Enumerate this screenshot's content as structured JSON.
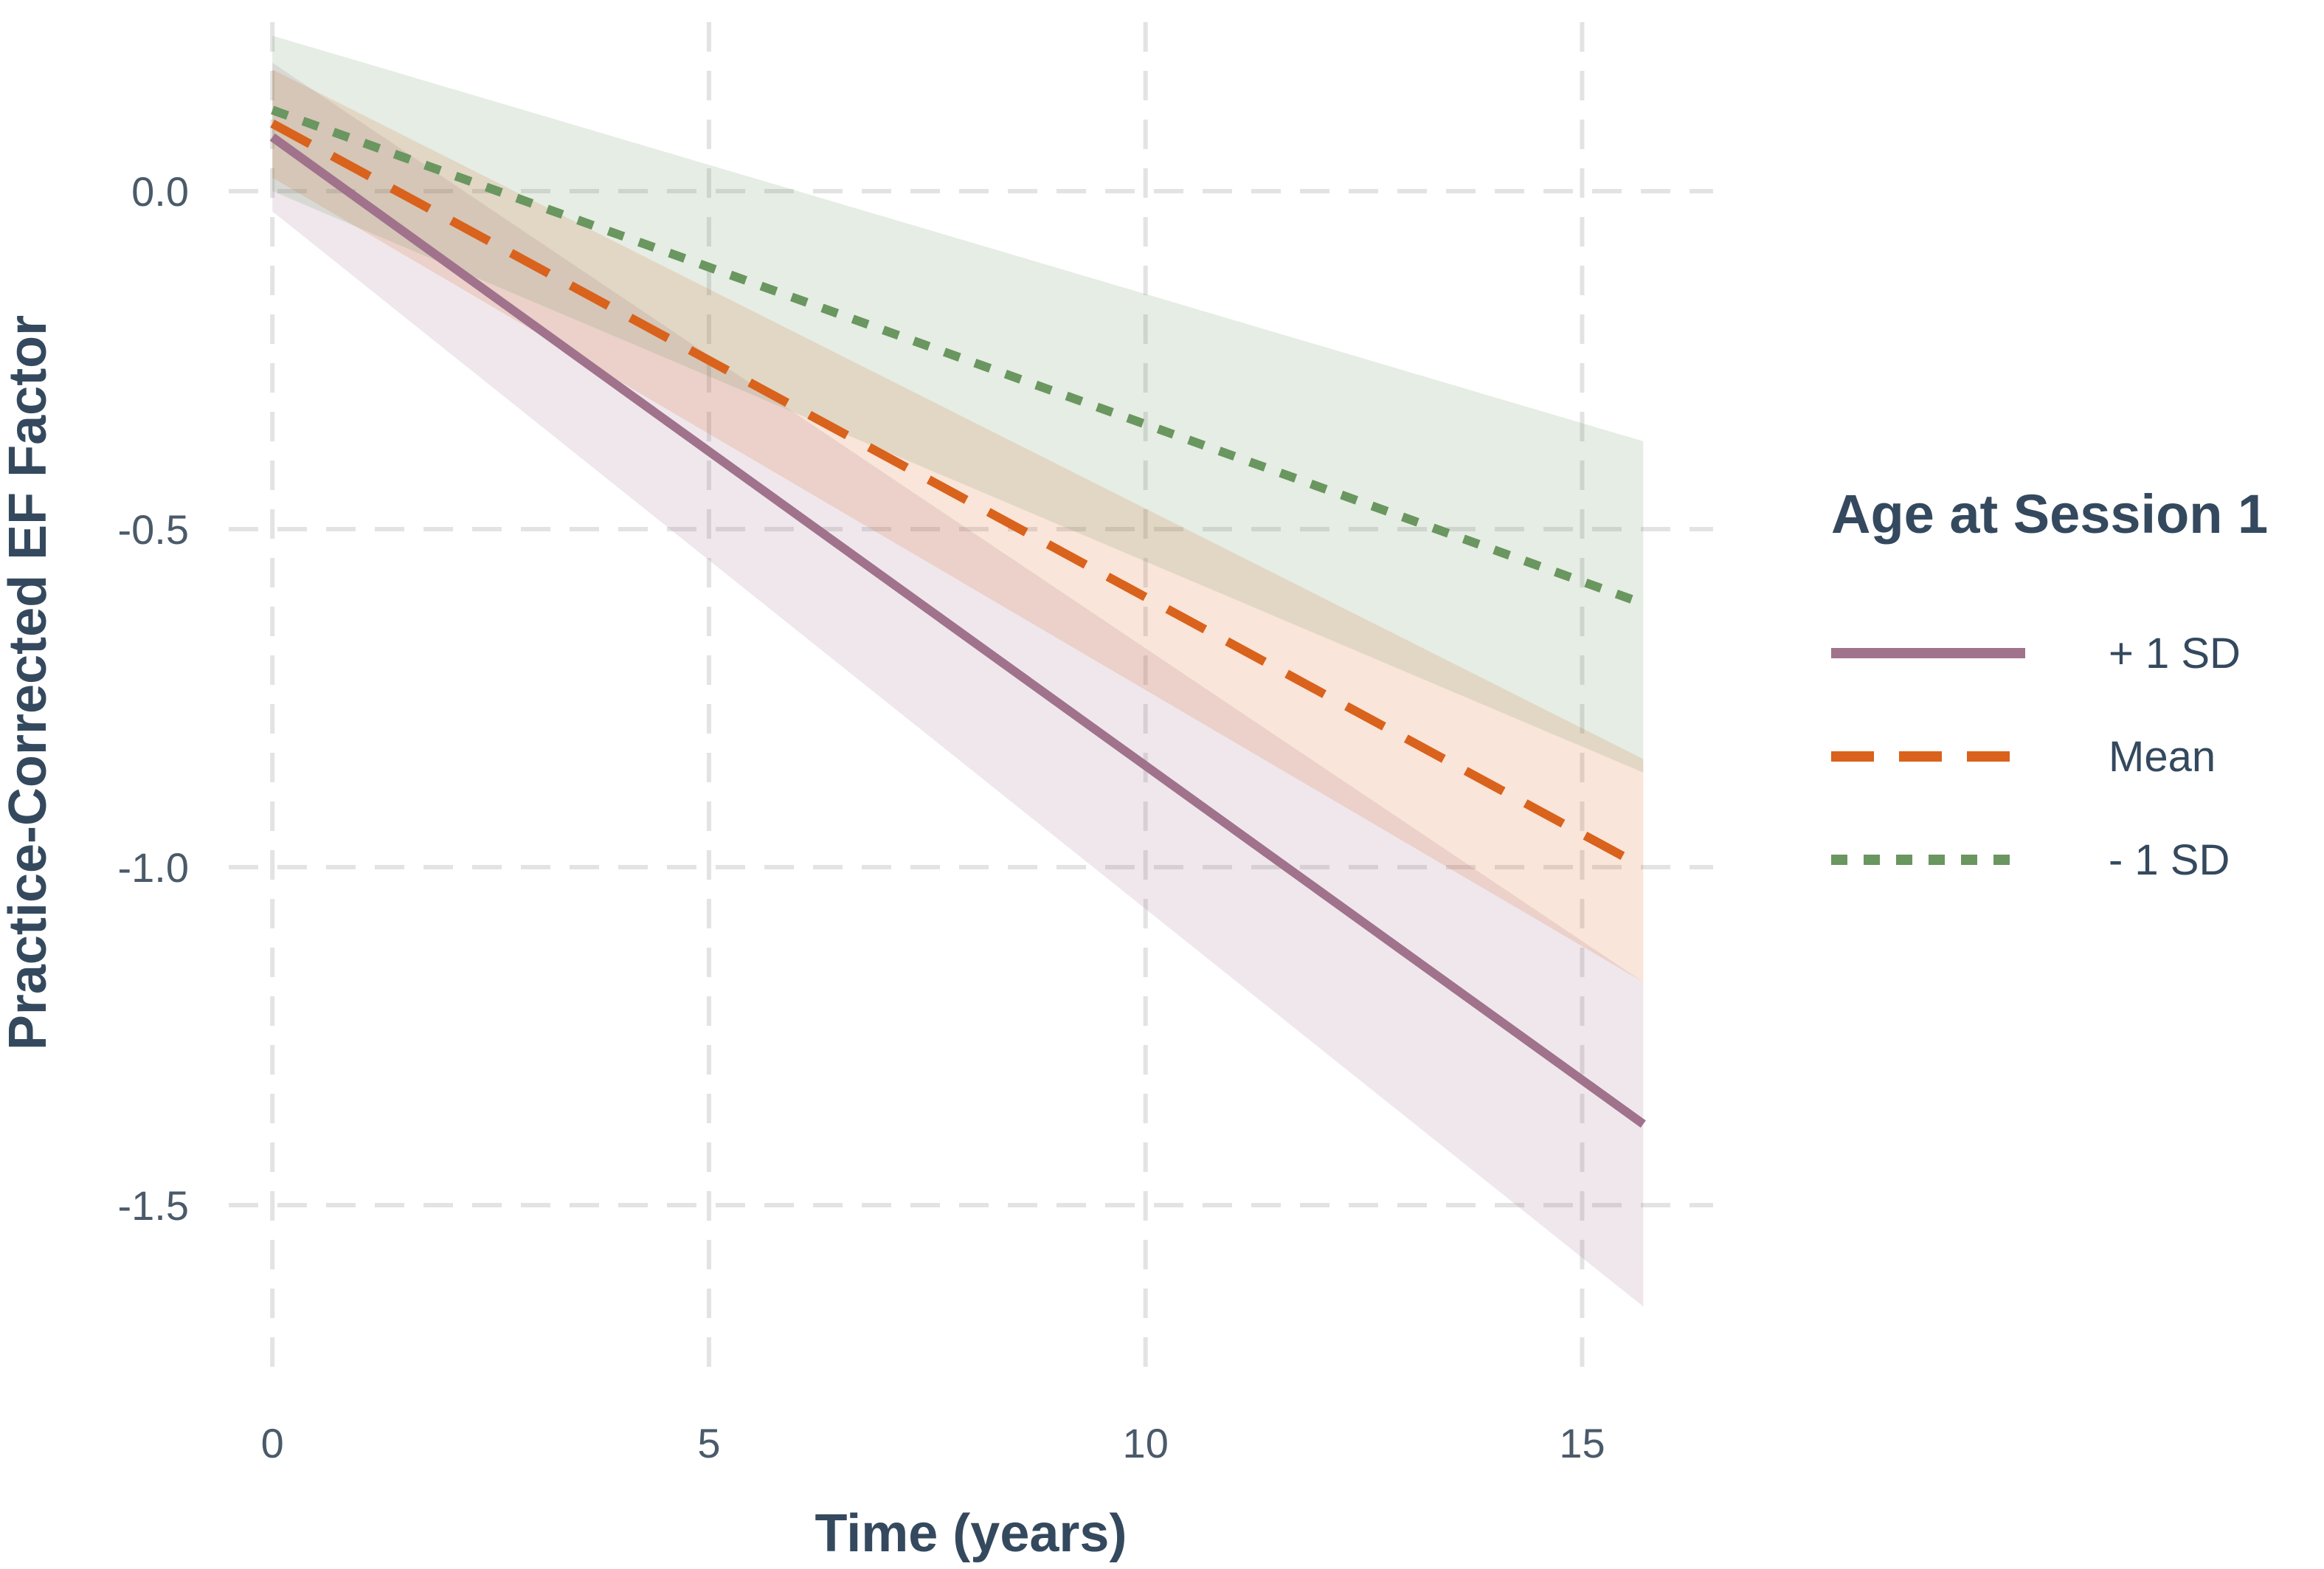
{
  "chart_data": {
    "type": "line",
    "xlabel": "Time (years)",
    "ylabel": "Practice-Corrected EF Factor",
    "xlim": [
      -0.5,
      16.5
    ],
    "ylim": [
      -1.75,
      0.25
    ],
    "x_ticks": [
      {
        "value": 0,
        "label": "0"
      },
      {
        "value": 5,
        "label": "5"
      },
      {
        "value": 10,
        "label": "10"
      },
      {
        "value": 15,
        "label": "15"
      }
    ],
    "y_ticks": [
      {
        "value": 0.0,
        "label": "0.0"
      },
      {
        "value": -0.5,
        "label": "-0.5"
      },
      {
        "value": -1.0,
        "label": "-1.0"
      },
      {
        "value": -1.5,
        "label": "-1.5"
      }
    ],
    "grid": true,
    "legend": {
      "title": "Age at Session 1",
      "position": "right"
    },
    "series": [
      {
        "name": "+ 1 SD",
        "color": "#a0728c",
        "style": "solid",
        "x": [
          0,
          15.7
        ],
        "y": [
          0.08,
          -1.38
        ],
        "ci_lower": [
          -0.03,
          -1.65
        ],
        "ci_upper": [
          0.19,
          -1.17
        ]
      },
      {
        "name": "Mean",
        "color": "#d9621c",
        "style": "dashed",
        "x": [
          0,
          15.7
        ],
        "y": [
          0.1,
          -1.0
        ],
        "ci_lower": [
          0.02,
          -1.17
        ],
        "ci_upper": [
          0.18,
          -0.84
        ]
      },
      {
        "name": "- 1 SD",
        "color": "#6a9660",
        "style": "dotted",
        "x": [
          0,
          15.7
        ],
        "y": [
          0.12,
          -0.61
        ],
        "ci_lower": [
          0.0,
          -0.86
        ],
        "ci_upper": [
          0.23,
          -0.37
        ]
      }
    ]
  }
}
